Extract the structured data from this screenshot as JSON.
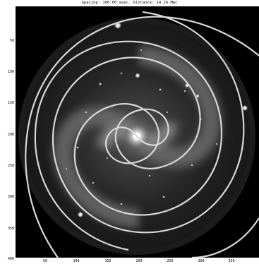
{
  "viewer": {
    "title": "Spacing: 100.00 asec. Distance: 14.26 Mpc",
    "y_ticks": [
      "50",
      "100",
      "150",
      "200",
      "250",
      "300",
      "350",
      "400"
    ],
    "x_ticks": [
      "50",
      "100",
      "150",
      "200",
      "250",
      "300",
      "350"
    ],
    "overlay_color": "#d8d8d8",
    "background_color": "#000000"
  }
}
